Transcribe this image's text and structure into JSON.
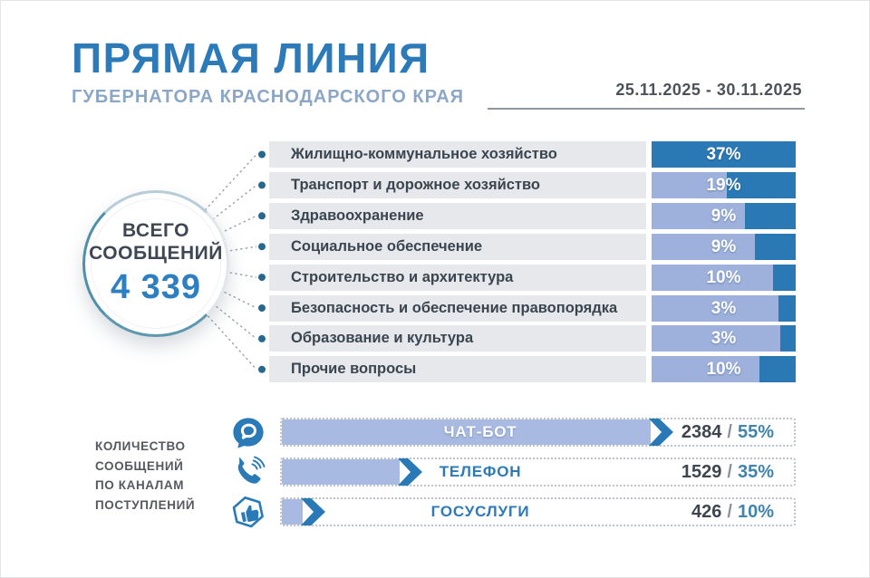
{
  "header": {
    "title": "ПРЯМАЯ ЛИНИЯ",
    "subtitle": "ГУБЕРНАТОРА КРАСНОДАРСКОГО КРАЯ",
    "date_range": "25.11.2025 - 30.11.2025"
  },
  "total": {
    "label_line1": "ВСЕГО",
    "label_line2": "СООБЩЕНИЙ",
    "value": "4 339"
  },
  "channels_caption": "КОЛИЧЕСТВО\nСООБЩЕНИЙ\nПО КАНАЛАМ\nПОСТУПЛЕНИЙ",
  "chart_data": [
    {
      "type": "bar",
      "title": "Прямая линия губернатора Краснодарского края",
      "period": "25.11.2025 - 30.11.2025",
      "total_messages": 4339,
      "unit": "%",
      "categories": [
        "Жилищно-коммунальное хозяйство",
        "Транспорт и дорожное хозяйство",
        "Здравоохранение",
        "Социальное обеспечение",
        "Строительство и архитектура",
        "Безопасность и обеспечение правопорядка",
        "Образование и культура",
        "Прочие вопросы"
      ],
      "values": [
        37,
        19,
        9,
        9,
        10,
        3,
        3,
        10
      ],
      "value_labels": [
        "37%",
        "19%",
        "9%",
        "9%",
        "10%",
        "3%",
        "3%",
        "10%"
      ],
      "dark_segment_fractions": [
        100,
        48,
        35,
        28,
        16,
        12,
        11,
        25
      ],
      "legend_position": "none",
      "grid": false
    },
    {
      "type": "bar",
      "title": "Количество сообщений по каналам поступлений",
      "categories": [
        "ЧАТ-БОТ",
        "ТЕЛЕФОН",
        "ГОСУСЛУГИ"
      ],
      "counts": [
        2384,
        1529,
        426
      ],
      "percents": [
        55,
        35,
        10
      ],
      "count_labels": [
        "2384",
        "1529",
        "426"
      ],
      "percent_labels": [
        "55%",
        "35%",
        "10%"
      ],
      "icons": [
        "chat-icon",
        "phone-icon",
        "thumbs-up-icon"
      ],
      "fill_fractions": [
        72,
        23,
        4
      ],
      "label_on_fill": [
        true,
        false,
        false
      ],
      "legend_position": "none",
      "grid": false
    }
  ],
  "colors": {
    "accent_blue": "#2d7ab8",
    "dark_bar": "#2b79b4",
    "light_bar": "#9db1dc",
    "light_bar_bottom": "#a9bae2",
    "strip_gray": "#e6e8ec",
    "subtitle_blue_gray": "#8ca6c6",
    "dark_text": "#3e4854",
    "total_value_blue": "#2e7fc2",
    "circle_ring_teal": "#4e90ab",
    "connector_gray": "#9aa3ac",
    "dot_blue": "#27688f"
  }
}
